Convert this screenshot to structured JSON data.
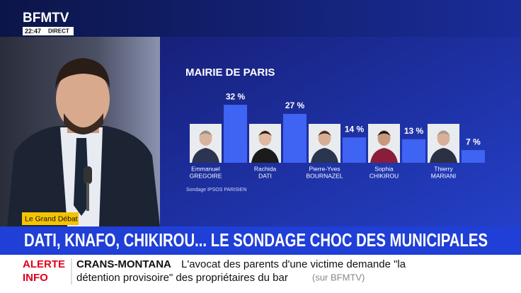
{
  "channel": {
    "logo": "BFMTV",
    "time": "22:47",
    "live": "DIRECT"
  },
  "chart_data": {
    "type": "bar",
    "title": "MAIRIE DE PARIS",
    "categories": [
      [
        "Emmanuel",
        "GREGOIRE"
      ],
      [
        "Rachida",
        "DATI"
      ],
      [
        "Pierre-Yves",
        "BOURNAZEL"
      ],
      [
        "Sophia",
        "CHIKIROU"
      ],
      [
        "Thierry",
        "MARIANI"
      ]
    ],
    "values": [
      32,
      27,
      14,
      13,
      7
    ],
    "value_labels": [
      "32 %",
      "27 %",
      "14 %",
      "13 %",
      "7 %"
    ],
    "color": "#3f63f2",
    "source": "Sondage IPSOS PARISIEN"
  },
  "program": "Le Grand Débat",
  "headline": "DATI, KNAFO, CHIKIROU... LE SONDAGE CHOC DES MUNICIPALES",
  "alert": {
    "label": [
      "ALERTE",
      "INFO"
    ],
    "topic": "CRANS-MONTANA",
    "text_lines": [
      "L'avocat des parents d'une victime demande \"la",
      "détention provisoire\" des propriétaires du bar"
    ],
    "source": "(sur BFMTV)"
  }
}
